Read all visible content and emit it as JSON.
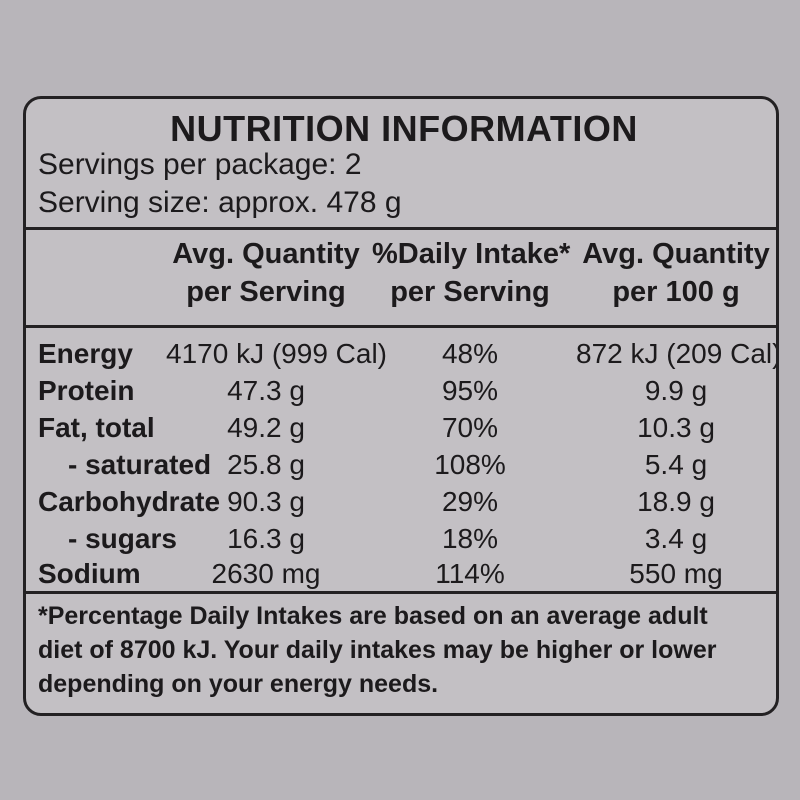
{
  "label": {
    "title": "NUTRITION INFORMATION",
    "servings_per_package": "Servings per package: 2",
    "serving_size": "Serving size: approx. 478 g",
    "columns": [
      {
        "line1": "Avg. Quantity",
        "line2": "per Serving"
      },
      {
        "line1": "%Daily Intake*",
        "line2": "per Serving"
      },
      {
        "line1": "Avg. Quantity",
        "line2": "per 100 g"
      }
    ],
    "rows": [
      {
        "label": "Energy",
        "per_serving": "4170 kJ (999 Cal)",
        "daily_intake": "48%",
        "per_100g": "872 kJ (209 Cal)"
      },
      {
        "label": "Protein",
        "per_serving": "47.3 g",
        "daily_intake": "95%",
        "per_100g": "9.9 g"
      },
      {
        "label": "Fat, total",
        "per_serving": "49.2 g",
        "daily_intake": "70%",
        "per_100g": "10.3 g"
      },
      {
        "label": "- saturated",
        "per_serving": "25.8 g",
        "daily_intake": "108%",
        "per_100g": "5.4 g"
      },
      {
        "label": "Carbohydrate",
        "per_serving": "90.3 g",
        "daily_intake": "29%",
        "per_100g": "18.9 g"
      },
      {
        "label": "- sugars",
        "per_serving": "16.3 g",
        "daily_intake": "18%",
        "per_100g": "3.4 g"
      },
      {
        "label": "Sodium",
        "per_serving": "2630 mg",
        "daily_intake": "114%",
        "per_100g": "550 mg"
      }
    ],
    "footnote": [
      "*Percentage Daily Intakes are based on an average adult",
      "diet of 8700 kJ. Your daily intakes may be higher or lower",
      "depending on your energy needs."
    ]
  },
  "colors": {
    "background": "#b8b5ba",
    "panel": "#c3c0c4",
    "ink": "#1c1a1c"
  }
}
